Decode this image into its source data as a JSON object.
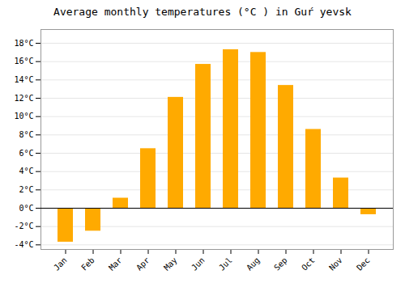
{
  "chart_data": {
    "type": "bar",
    "title": "Average monthly temperatures (°C ) in Guŕ yevsk",
    "categories": [
      "Jan",
      "Feb",
      "Mar",
      "Apr",
      "May",
      "Jun",
      "Jul",
      "Aug",
      "Sep",
      "Oct",
      "Nov",
      "Dec"
    ],
    "values": [
      -3.7,
      -2.5,
      1.1,
      6.5,
      12.1,
      15.7,
      17.3,
      17.0,
      13.4,
      8.6,
      3.3,
      -0.7
    ],
    "color": "#FFAA00",
    "ylim": [
      -4.5,
      19.5
    ],
    "yticks": [
      {
        "value": -4,
        "label": "-4°C"
      },
      {
        "value": -2,
        "label": "-2°C"
      },
      {
        "value": 0,
        "label": "0°C"
      },
      {
        "value": 2,
        "label": "2°C"
      },
      {
        "value": 4,
        "label": "4°C"
      },
      {
        "value": 6,
        "label": "6°C"
      },
      {
        "value": 8,
        "label": "8°C"
      },
      {
        "value": 10,
        "label": "10°C"
      },
      {
        "value": 12,
        "label": "12°C"
      },
      {
        "value": 14,
        "label": "14°C"
      },
      {
        "value": 16,
        "label": "16°C"
      },
      {
        "value": 18,
        "label": "18°C"
      }
    ],
    "grid": true
  }
}
